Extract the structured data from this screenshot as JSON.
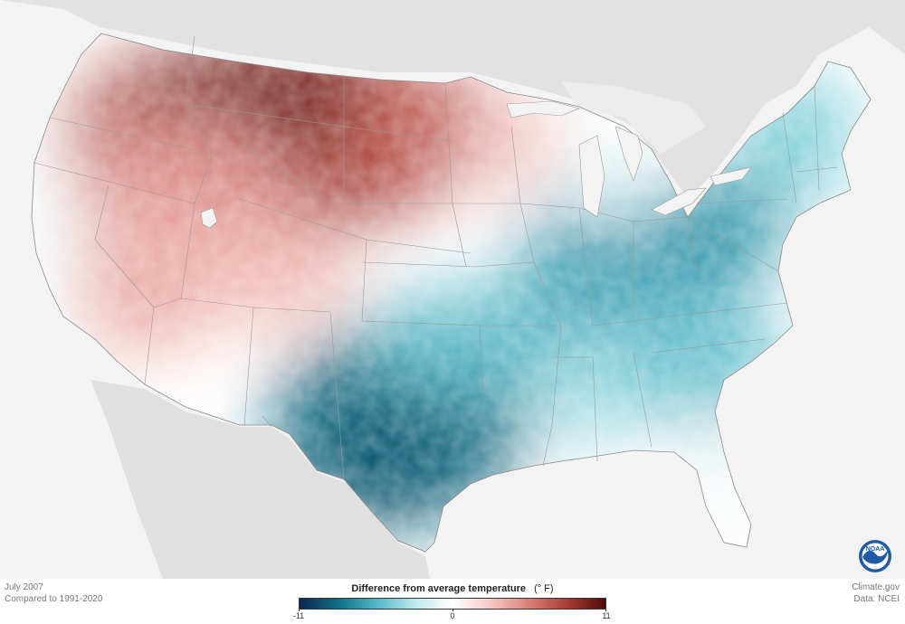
{
  "map": {
    "period": "July 2007",
    "baseline": "Compared to 1991-2020",
    "credit_site": "Climate.gov",
    "credit_data": "Data: NCEI",
    "logo_text": "NOAA"
  },
  "legend": {
    "title": "Difference from average temperature",
    "unit": "(° F)",
    "min": -11,
    "max": 11,
    "tick_labels": [
      "-11",
      "0",
      "11"
    ],
    "tick_values": [
      -11,
      0,
      11
    ],
    "colors": [
      "#0b2752",
      "#0f6e86",
      "#51b6c6",
      "#bfe8ee",
      "#ffffff",
      "#f6c9c6",
      "#da7f78",
      "#a83d35",
      "#4f0a08"
    ]
  },
  "colors": {
    "ocean_land_background": "#f3f3f3",
    "neighbor_land": "#e2e2e2",
    "state_border": "#9a9a9a",
    "warm_core": "#8e2a24",
    "cool_core": "#0f6b82"
  },
  "regions": {
    "northern_plains_anomaly": "warm",
    "west_anomaly": "warm",
    "texas_southern_plains_anomaly": "cool",
    "east_ohio_valley_anomaly": "cool",
    "northeast_anomaly": "cool",
    "florida_anomaly": "near-normal"
  }
}
